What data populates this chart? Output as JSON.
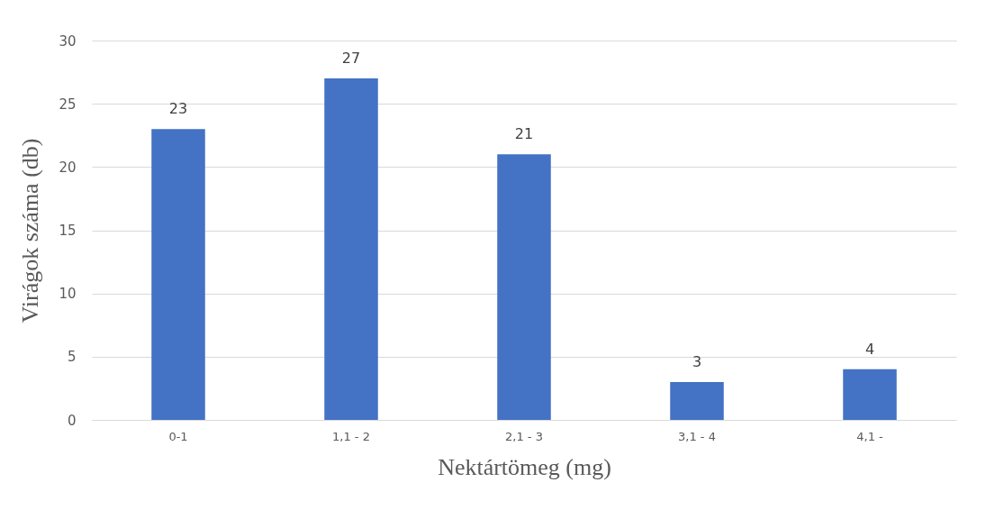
{
  "chart_data": {
    "type": "bar",
    "xlabel": "Nektártömeg (mg)",
    "ylabel": "Virágok száma (db)",
    "categories": [
      "0-1",
      "1,1 - 2",
      "2,1 - 3",
      "3,1 - 4",
      "4,1 -"
    ],
    "values": [
      23,
      27,
      21,
      3,
      4
    ],
    "color": "#4472c4",
    "ylim": [
      0,
      30
    ],
    "yticks": [
      0,
      5,
      10,
      15,
      20,
      25,
      30
    ],
    "grid": "y",
    "data_labels": true
  }
}
